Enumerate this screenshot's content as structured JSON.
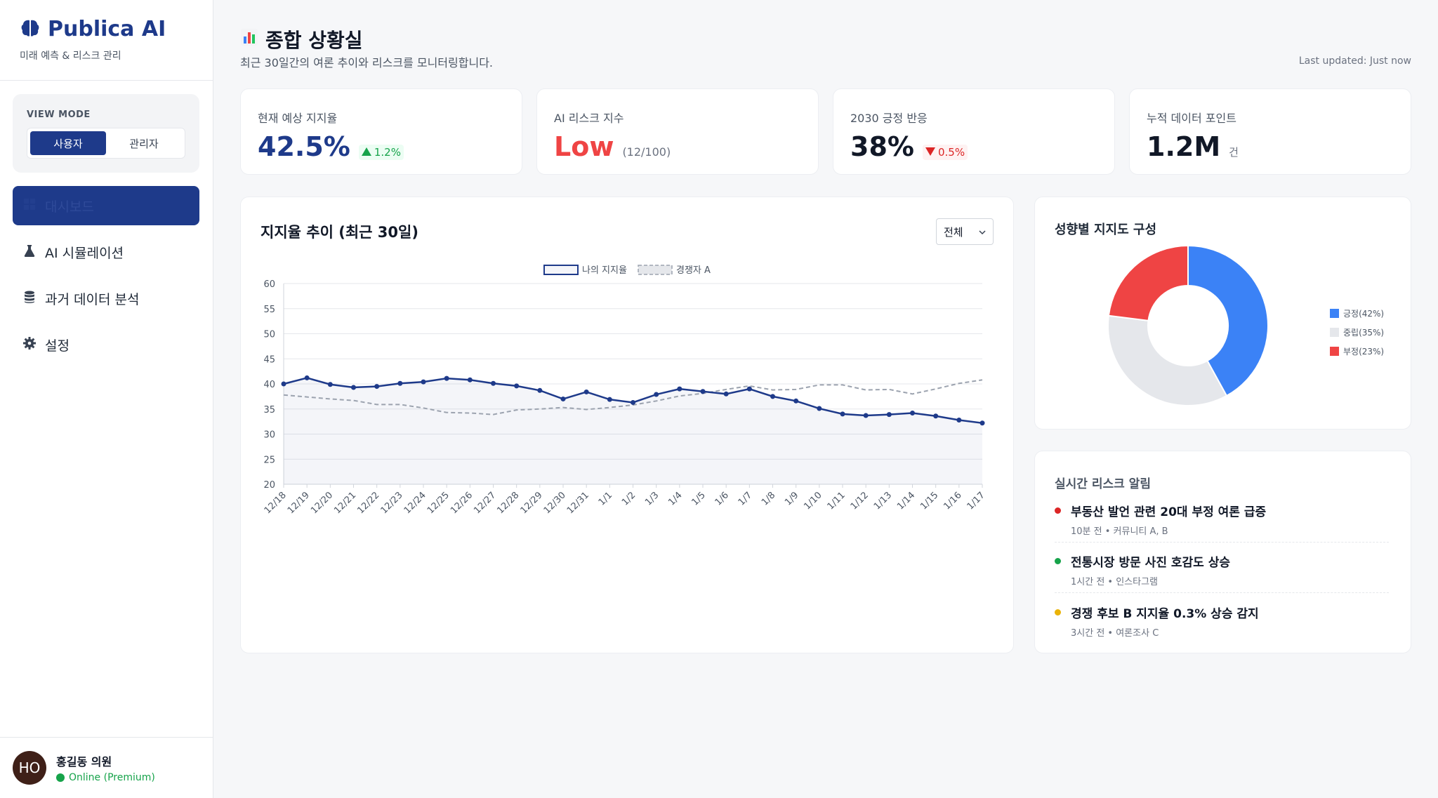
{
  "brand": {
    "title": "Publica AI",
    "subtitle": "미래 예측 & 리스크 관리"
  },
  "view_mode": {
    "label": "VIEW MODE",
    "options": [
      "사용자",
      "관리자"
    ],
    "active": "사용자"
  },
  "nav": {
    "items": [
      {
        "label": "대시보드",
        "icon": "dashboard-icon",
        "active": true
      },
      {
        "label": "AI 시뮬레이션",
        "icon": "flask-icon",
        "active": false
      },
      {
        "label": "과거 데이터 분석",
        "icon": "database-icon",
        "active": false
      },
      {
        "label": "설정",
        "icon": "gear-icon",
        "active": false
      }
    ]
  },
  "user": {
    "initials": "HO",
    "name": "홍길동 의원",
    "status": "Online (Premium)"
  },
  "header": {
    "title": "종합 상황실",
    "subtitle": "최근 30일간의 여론 추이와 리스크를 모니터링합니다.",
    "last_updated": "Last updated: Just now"
  },
  "kpis": [
    {
      "label": "현재 예상 지지율",
      "value": "42.5%",
      "delta": "1.2%",
      "direction": "up",
      "color": "#1e3a8a"
    },
    {
      "label": "AI 리스크 지수",
      "value": "Low",
      "note": "(12/100)",
      "color": "#ef4444"
    },
    {
      "label": "2030 긍정 반응",
      "value": "38%",
      "delta": "0.5%",
      "direction": "down",
      "color": "#111827"
    },
    {
      "label": "누적 데이터 포인트",
      "value": "1.2M",
      "note": "건",
      "color": "#111827"
    }
  ],
  "trend_card": {
    "title": "지지율 추이 (최근 30일)",
    "filter": "전체"
  },
  "chart_data": [
    {
      "type": "line",
      "title": "지지율 추이 (최근 30일)",
      "categories": [
        "12/18",
        "12/19",
        "12/20",
        "12/21",
        "12/22",
        "12/23",
        "12/24",
        "12/25",
        "12/26",
        "12/27",
        "12/28",
        "12/29",
        "12/30",
        "12/31",
        "1/1",
        "1/2",
        "1/3",
        "1/4",
        "1/5",
        "1/6",
        "1/7",
        "1/8",
        "1/9",
        "1/10",
        "1/11",
        "1/12",
        "1/13",
        "1/14",
        "1/15",
        "1/16",
        "1/17"
      ],
      "series": [
        {
          "name": "나의 지지율",
          "color": "#1e3a8a",
          "values": [
            40.0,
            41.2,
            39.9,
            39.3,
            39.5,
            40.1,
            40.4,
            41.1,
            40.8,
            40.1,
            39.6,
            38.7,
            37.0,
            38.4,
            36.9,
            36.3,
            37.9,
            39.0,
            38.5,
            38.0,
            39.0,
            37.5,
            36.6,
            35.1,
            34.0,
            33.7,
            33.9,
            34.2,
            33.6,
            32.8,
            32.2
          ]
        },
        {
          "name": "경쟁자 A",
          "color": "#9ca3af",
          "values": [
            37.8,
            37.4,
            37.0,
            36.7,
            35.9,
            35.9,
            35.2,
            34.3,
            34.2,
            33.9,
            34.8,
            35.0,
            35.3,
            34.9,
            35.3,
            35.8,
            36.6,
            37.6,
            38.1,
            38.9,
            39.6,
            38.8,
            38.9,
            39.8,
            39.8,
            38.8,
            38.9,
            38.0,
            39.0,
            40.1,
            40.8
          ]
        }
      ],
      "ylim": [
        20,
        60
      ],
      "yticks": [
        20,
        25,
        30,
        35,
        40,
        45,
        50,
        55,
        60
      ],
      "legend": "top-center",
      "grid": true
    },
    {
      "type": "pie",
      "title": "성향별 지지도 구성",
      "labels": [
        "긍정(42%)",
        "중립(35%)",
        "부정(23%)"
      ],
      "values": [
        42,
        35,
        23
      ],
      "colors": [
        "#3b82f6",
        "#e5e7eb",
        "#ef4444"
      ],
      "legend": "right"
    }
  ],
  "alerts_card": {
    "title": "실시간 리스크 알림",
    "items": [
      {
        "title": "부동산 발언 관련 20대 부정 여론 급증",
        "meta": "10분 전 • 커뮤니티 A, B",
        "color": "#dc2626"
      },
      {
        "title": "전통시장 방문 사진 호감도 상승",
        "meta": "1시간 전 • 인스타그램",
        "color": "#16a34a"
      },
      {
        "title": "경쟁 후보 B 지지율 0.3% 상승 감지",
        "meta": "3시간 전 • 여론조사 C",
        "color": "#eab308"
      }
    ]
  }
}
